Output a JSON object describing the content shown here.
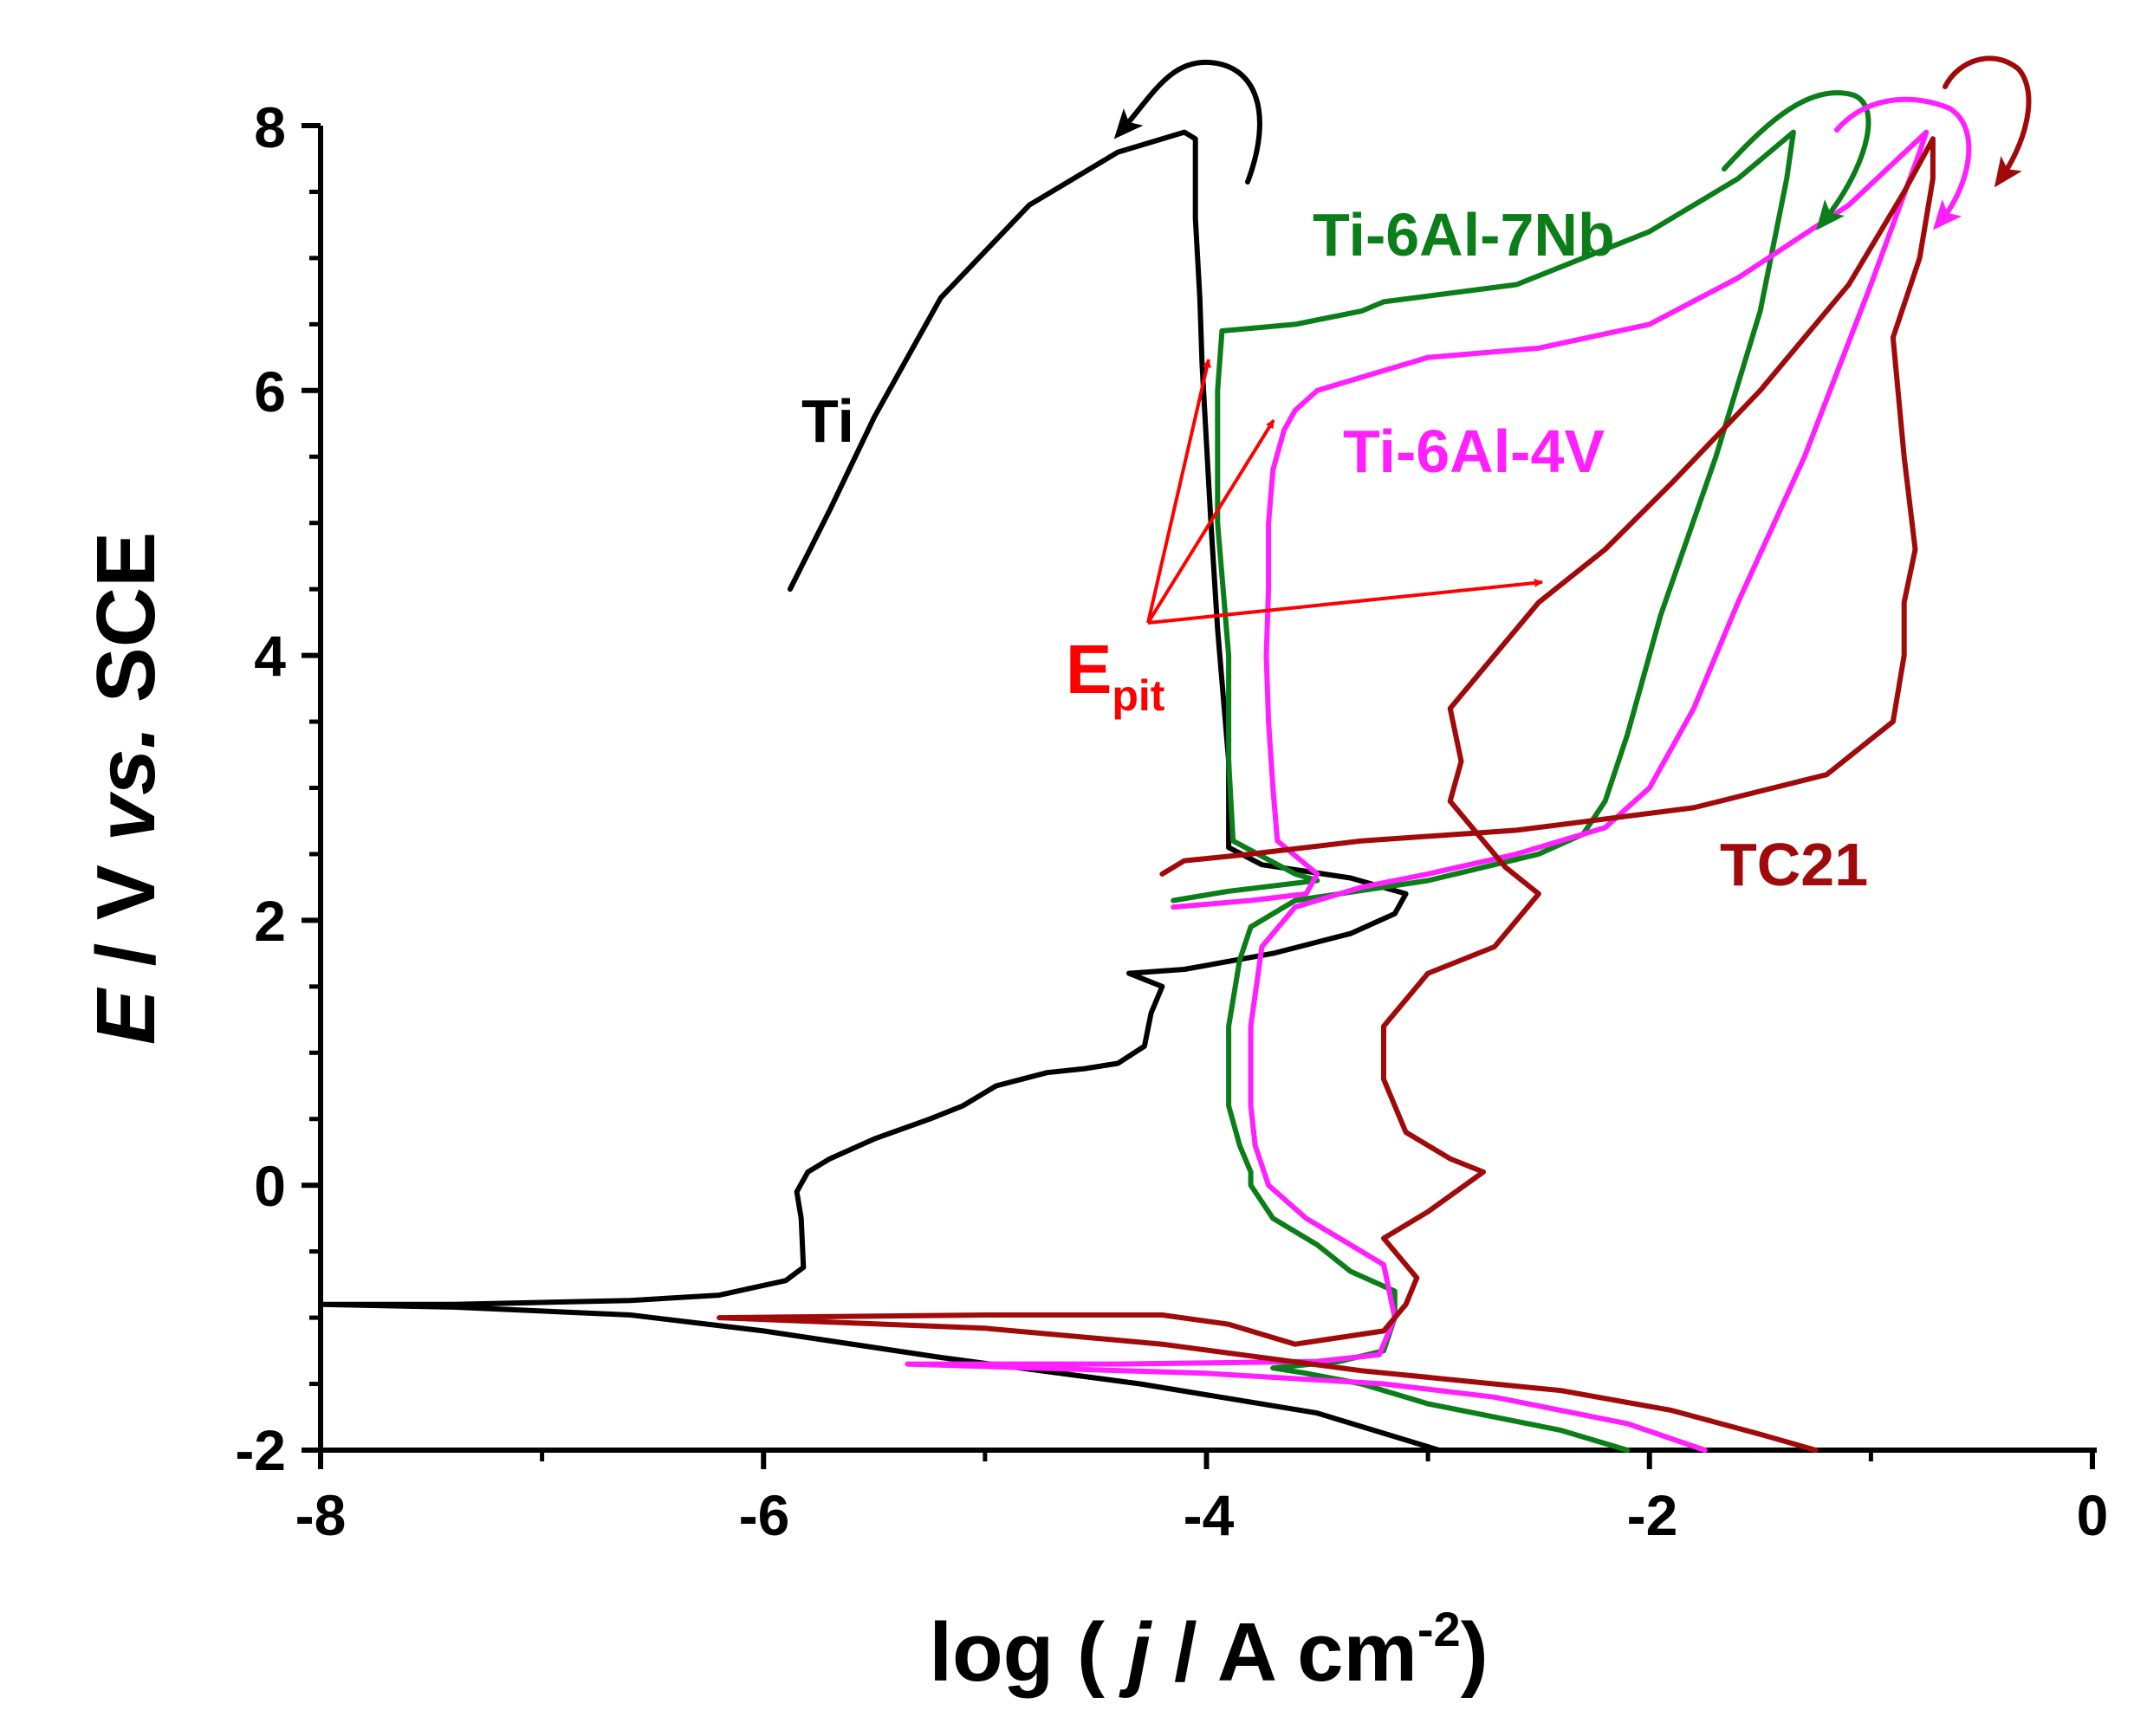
{
  "chart_data": {
    "type": "line",
    "title": "",
    "xlabel": "log ( j / A cm-2)",
    "xlabel_parts": {
      "pre": "log ( ",
      "italic": "j",
      "mid": " / A cm",
      "sup": "-2",
      "post": ")"
    },
    "ylabel": "E / V vs. SCE",
    "ylabel_parts": {
      "italic1": "E",
      "mid": " / V ",
      "italic2": "vs.",
      "post": " SCE"
    },
    "xlim": [
      -8,
      0
    ],
    "ylim": [
      -2,
      8
    ],
    "x_ticks": [
      -8,
      -6,
      -4,
      -2,
      0
    ],
    "x_tick_labels": [
      "-8",
      "-6",
      "-4",
      "-2",
      "0"
    ],
    "y_ticks": [
      -2,
      0,
      2,
      4,
      6,
      8
    ],
    "y_tick_labels": [
      "-2",
      "0",
      "2",
      "4",
      "6",
      "8"
    ],
    "series": [
      {
        "name": "Ti",
        "color": "#000000",
        "label_at": [
          -5.85,
          5.55
        ],
        "points": [
          [
            -2.95,
            -2.0
          ],
          [
            -3.5,
            -1.72
          ],
          [
            -4.3,
            -1.5
          ],
          [
            -5.2,
            -1.3
          ],
          [
            -6.0,
            -1.1
          ],
          [
            -6.6,
            -0.98
          ],
          [
            -7.4,
            -0.92
          ],
          [
            -8.0,
            -0.9
          ],
          [
            -7.4,
            -0.9
          ],
          [
            -6.6,
            -0.87
          ],
          [
            -6.2,
            -0.83
          ],
          [
            -5.9,
            -0.72
          ],
          [
            -5.82,
            -0.62
          ],
          [
            -5.83,
            -0.25
          ],
          [
            -5.85,
            -0.05
          ],
          [
            -5.8,
            0.1
          ],
          [
            -5.7,
            0.2
          ],
          [
            -5.5,
            0.35
          ],
          [
            -5.25,
            0.5
          ],
          [
            -5.1,
            0.6
          ],
          [
            -4.95,
            0.75
          ],
          [
            -4.72,
            0.85
          ],
          [
            -4.55,
            0.88
          ],
          [
            -4.4,
            0.92
          ],
          [
            -4.28,
            1.05
          ],
          [
            -4.25,
            1.3
          ],
          [
            -4.2,
            1.5
          ],
          [
            -4.35,
            1.6
          ],
          [
            -4.1,
            1.63
          ],
          [
            -3.7,
            1.75
          ],
          [
            -3.35,
            1.9
          ],
          [
            -3.15,
            2.05
          ],
          [
            -3.1,
            2.2
          ],
          [
            -3.35,
            2.32
          ],
          [
            -3.75,
            2.42
          ],
          [
            -3.9,
            2.55
          ],
          [
            -3.9,
            2.85
          ],
          [
            -3.9,
            3.2
          ],
          [
            -3.95,
            4.2
          ],
          [
            -3.98,
            5.0
          ],
          [
            -4.0,
            5.6
          ],
          [
            -4.02,
            6.2
          ],
          [
            -4.03,
            6.7
          ],
          [
            -4.05,
            7.3
          ],
          [
            -4.05,
            7.9
          ],
          [
            -4.1,
            7.95
          ],
          [
            -4.4,
            7.8
          ],
          [
            -4.8,
            7.4
          ],
          [
            -5.2,
            6.7
          ],
          [
            -5.5,
            5.8
          ],
          [
            -5.7,
            5.1
          ],
          [
            -5.88,
            4.5
          ]
        ]
      },
      {
        "name": "Ti-6Al-7Nb",
        "color": "#0b7d19",
        "label_at": [
          -3.2,
          7.12
        ],
        "points": [
          [
            -2.1,
            -2.0
          ],
          [
            -2.4,
            -1.85
          ],
          [
            -3.0,
            -1.65
          ],
          [
            -3.3,
            -1.5
          ],
          [
            -3.55,
            -1.42
          ],
          [
            -3.7,
            -1.38
          ],
          [
            -3.4,
            -1.33
          ],
          [
            -3.2,
            -1.25
          ],
          [
            -3.15,
            -1.0
          ],
          [
            -3.15,
            -0.8
          ],
          [
            -3.35,
            -0.65
          ],
          [
            -3.5,
            -0.45
          ],
          [
            -3.7,
            -0.25
          ],
          [
            -3.8,
            0.0
          ],
          [
            -3.8,
            0.1
          ],
          [
            -3.85,
            0.3
          ],
          [
            -3.9,
            0.6
          ],
          [
            -3.9,
            1.2
          ],
          [
            -3.85,
            1.7
          ],
          [
            -3.8,
            1.95
          ],
          [
            -3.6,
            2.15
          ],
          [
            -3.0,
            2.3
          ],
          [
            -2.5,
            2.5
          ],
          [
            -2.3,
            2.65
          ],
          [
            -2.2,
            2.9
          ],
          [
            -2.1,
            3.4
          ],
          [
            -1.95,
            4.3
          ],
          [
            -1.7,
            5.5
          ],
          [
            -1.5,
            6.6
          ],
          [
            -1.38,
            7.6
          ],
          [
            -1.35,
            7.95
          ],
          [
            -1.6,
            7.6
          ],
          [
            -2.0,
            7.2
          ],
          [
            -2.6,
            6.8
          ],
          [
            -3.2,
            6.67
          ],
          [
            -3.3,
            6.6
          ],
          [
            -3.6,
            6.5
          ],
          [
            -3.93,
            6.45
          ],
          [
            -3.95,
            6.0
          ],
          [
            -3.95,
            5.0
          ],
          [
            -3.9,
            4.0
          ],
          [
            -3.9,
            3.2
          ],
          [
            -3.88,
            2.6
          ],
          [
            -3.6,
            2.35
          ],
          [
            -3.5,
            2.3
          ],
          [
            -3.9,
            2.22
          ],
          [
            -4.15,
            2.15
          ]
        ]
      },
      {
        "name": "Ti-6Al-4V",
        "color": "#ff1fff",
        "label_at": [
          -3.35,
          5.5
        ],
        "points": [
          [
            -1.75,
            -2.0
          ],
          [
            -2.1,
            -1.8
          ],
          [
            -2.7,
            -1.6
          ],
          [
            -3.2,
            -1.5
          ],
          [
            -4.0,
            -1.42
          ],
          [
            -5.35,
            -1.35
          ],
          [
            -4.4,
            -1.35
          ],
          [
            -3.5,
            -1.33
          ],
          [
            -3.22,
            -1.28
          ],
          [
            -3.15,
            -1.0
          ],
          [
            -3.2,
            -0.6
          ],
          [
            -3.35,
            -0.45
          ],
          [
            -3.55,
            -0.25
          ],
          [
            -3.72,
            0.0
          ],
          [
            -3.78,
            0.3
          ],
          [
            -3.8,
            0.6
          ],
          [
            -3.8,
            1.2
          ],
          [
            -3.75,
            1.8
          ],
          [
            -3.6,
            2.1
          ],
          [
            -3.3,
            2.25
          ],
          [
            -3.0,
            2.35
          ],
          [
            -2.6,
            2.5
          ],
          [
            -2.2,
            2.7
          ],
          [
            -2.0,
            3.0
          ],
          [
            -1.8,
            3.6
          ],
          [
            -1.6,
            4.4
          ],
          [
            -1.3,
            5.5
          ],
          [
            -1.0,
            6.8
          ],
          [
            -0.78,
            7.8
          ],
          [
            -0.75,
            7.95
          ],
          [
            -1.1,
            7.4
          ],
          [
            -1.6,
            6.85
          ],
          [
            -2.0,
            6.5
          ],
          [
            -2.5,
            6.32
          ],
          [
            -3.0,
            6.25
          ],
          [
            -3.3,
            6.1
          ],
          [
            -3.5,
            6.0
          ],
          [
            -3.6,
            5.85
          ],
          [
            -3.65,
            5.7
          ],
          [
            -3.7,
            5.4
          ],
          [
            -3.72,
            5.0
          ],
          [
            -3.72,
            4.5
          ],
          [
            -3.73,
            4.0
          ],
          [
            -3.72,
            3.5
          ],
          [
            -3.7,
            3.0
          ],
          [
            -3.68,
            2.6
          ],
          [
            -3.5,
            2.35
          ],
          [
            -3.55,
            2.2
          ],
          [
            -3.8,
            2.15
          ],
          [
            -4.15,
            2.1
          ]
        ]
      },
      {
        "name": "TC21",
        "color": "#a00a0a",
        "label_at": [
          -1.08,
          2.45
        ],
        "points": [
          [
            -1.25,
            -2.0
          ],
          [
            -1.5,
            -1.88
          ],
          [
            -1.9,
            -1.7
          ],
          [
            -2.4,
            -1.55
          ],
          [
            -3.3,
            -1.4
          ],
          [
            -4.2,
            -1.2
          ],
          [
            -5.0,
            -1.08
          ],
          [
            -6.2,
            -1.0
          ],
          [
            -5.0,
            -0.98
          ],
          [
            -4.2,
            -0.98
          ],
          [
            -3.9,
            -1.05
          ],
          [
            -3.6,
            -1.2
          ],
          [
            -3.2,
            -1.1
          ],
          [
            -3.1,
            -0.9
          ],
          [
            -3.05,
            -0.7
          ],
          [
            -3.2,
            -0.4
          ],
          [
            -3.0,
            -0.2
          ],
          [
            -2.75,
            0.1
          ],
          [
            -2.9,
            0.2
          ],
          [
            -3.1,
            0.4
          ],
          [
            -3.2,
            0.8
          ],
          [
            -3.2,
            1.2
          ],
          [
            -3.0,
            1.6
          ],
          [
            -2.7,
            1.8
          ],
          [
            -2.6,
            2.0
          ],
          [
            -2.5,
            2.2
          ],
          [
            -2.65,
            2.4
          ],
          [
            -2.75,
            2.6
          ],
          [
            -2.9,
            2.9
          ],
          [
            -2.85,
            3.2
          ],
          [
            -2.9,
            3.6
          ],
          [
            -2.7,
            4.0
          ],
          [
            -2.5,
            4.4
          ],
          [
            -2.2,
            4.8
          ],
          [
            -1.9,
            5.3
          ],
          [
            -1.5,
            6.0
          ],
          [
            -1.1,
            6.8
          ],
          [
            -0.85,
            7.5
          ],
          [
            -0.72,
            7.9
          ],
          [
            -0.72,
            7.6
          ],
          [
            -0.78,
            7.0
          ],
          [
            -0.9,
            6.4
          ],
          [
            -0.85,
            5.5
          ],
          [
            -0.8,
            4.8
          ],
          [
            -0.85,
            4.4
          ],
          [
            -0.85,
            4.0
          ],
          [
            -0.9,
            3.5
          ],
          [
            -1.2,
            3.1
          ],
          [
            -1.8,
            2.85
          ],
          [
            -2.6,
            2.68
          ],
          [
            -3.3,
            2.6
          ],
          [
            -3.8,
            2.5
          ],
          [
            -4.1,
            2.45
          ],
          [
            -4.2,
            2.35
          ]
        ]
      }
    ],
    "annotations": [
      {
        "text": "E",
        "subscript": "pit",
        "color": "#ff0000",
        "at": [
          -4.5,
          3.8
        ],
        "arrows_from": [
          -4.35,
          4.35
        ],
        "arrows_to": [
          [
            -4.05,
            6.3
          ],
          [
            -3.55,
            5.85
          ],
          [
            -2.5,
            4.55
          ]
        ]
      }
    ]
  }
}
